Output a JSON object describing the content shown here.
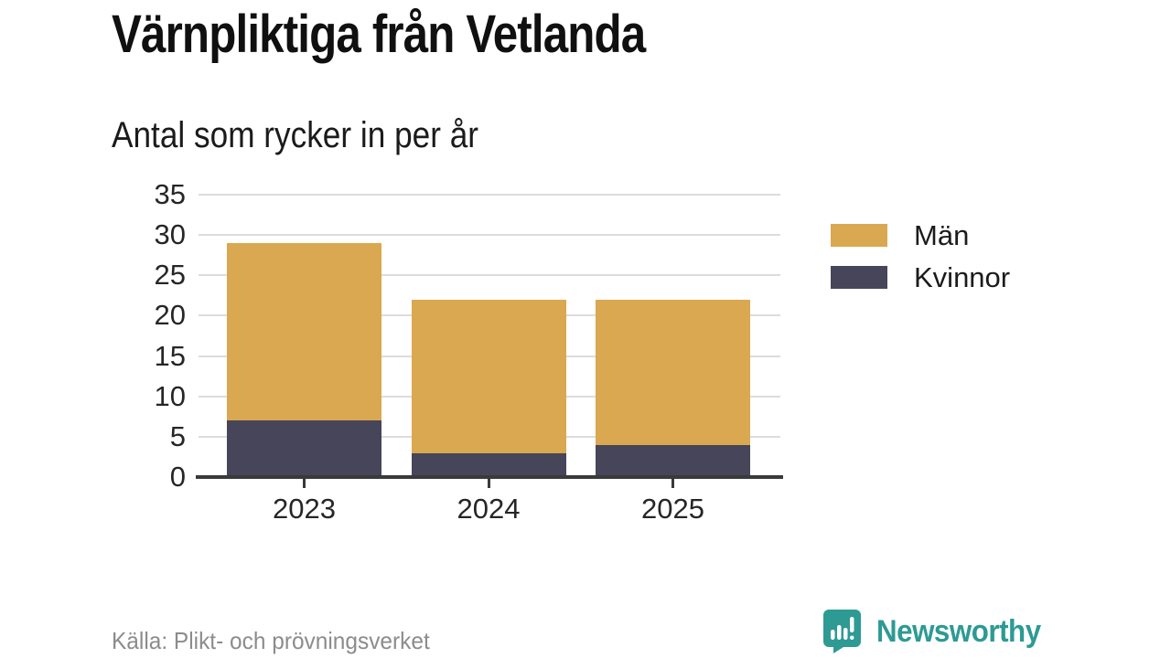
{
  "header": {
    "title": "Värnpliktiga från Vetlanda",
    "subtitle": "Antal som rycker in per år"
  },
  "footer": {
    "source": "Källa: Plikt- och prövningsverket",
    "brand_name": "Newsworthy"
  },
  "colors": {
    "men": "#d9a850",
    "women": "#46455a",
    "grid": "#dcdcdc",
    "axis": "#3a3a3a",
    "tick_text": "#262626",
    "muted_text": "#8c8c8c",
    "brand_teal": "#2d9a94"
  },
  "chart_data": {
    "type": "bar",
    "stacked": true,
    "title": "Värnpliktiga från Vetlanda",
    "subtitle": "Antal som rycker in per år",
    "categories": [
      "2023",
      "2024",
      "2025"
    ],
    "series": [
      {
        "name": "Män",
        "color": "#d9a850",
        "values": [
          22,
          19,
          18
        ]
      },
      {
        "name": "Kvinnor",
        "color": "#46455a",
        "values": [
          7,
          3,
          4
        ]
      }
    ],
    "stack_order_bottom_up": [
      "Kvinnor",
      "Män"
    ],
    "totals": [
      29,
      22,
      22
    ],
    "xlabel": "",
    "ylabel": "",
    "ylim": [
      0,
      35
    ],
    "yticks": [
      0,
      5,
      10,
      15,
      20,
      25,
      30,
      35
    ],
    "grid": true,
    "legend_position": "right",
    "source": "Källa: Plikt- och prövningsverket"
  }
}
